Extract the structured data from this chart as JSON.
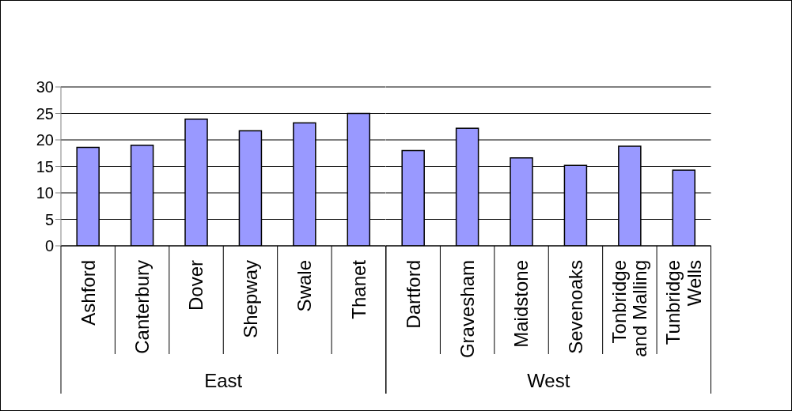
{
  "chart_data": [
    {
      "type": "bar",
      "categories": [
        "Ashford",
        "Canterbury",
        "Dover",
        "Shepway",
        "Swale",
        "Thanet"
      ],
      "values": [
        18.6,
        19.0,
        23.9,
        21.7,
        23.2,
        25.0
      ],
      "color": "#9999ff",
      "xlabel": "East",
      "ylim": [
        0,
        30
      ],
      "yticks": [
        0,
        5,
        10,
        15,
        20,
        25,
        30
      ],
      "grid": "y"
    },
    {
      "type": "bar",
      "categories": [
        "Dartford",
        "Gravesham",
        "Maidstone",
        "Sevenoaks",
        "Tonbridge and Malling",
        "Tunbridge Wells"
      ],
      "values": [
        18.0,
        22.2,
        16.6,
        15.2,
        18.8,
        14.3
      ],
      "color": "#9999ff",
      "xlabel": "West",
      "ylim": [
        0,
        30
      ],
      "yticks": [
        0,
        5,
        10,
        15,
        20,
        25,
        30
      ],
      "grid": "y",
      "tick_labels": "x"
    }
  ]
}
